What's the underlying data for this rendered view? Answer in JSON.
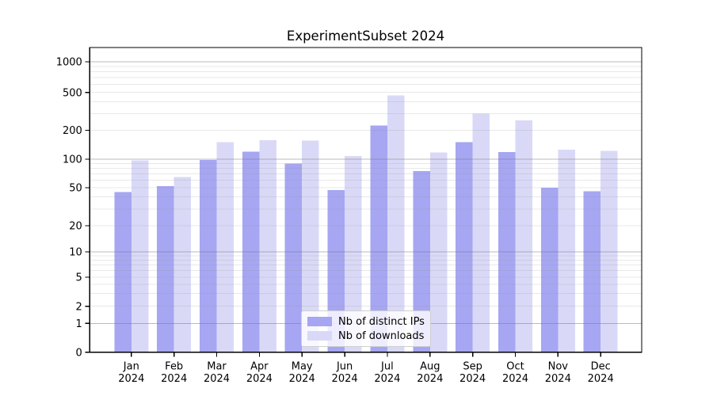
{
  "chart_data": {
    "type": "bar",
    "title": "ExperimentSubset 2024",
    "yscale": "symlog",
    "ylim": [
      0,
      1400
    ],
    "grid": true,
    "legend_position": "lower center",
    "yticks": [
      0,
      1,
      2,
      5,
      10,
      20,
      50,
      100,
      200,
      500,
      1000
    ],
    "categories": [
      "Jan",
      "Feb",
      "Mar",
      "Apr",
      "May",
      "Jun",
      "Jul",
      "Aug",
      "Sep",
      "Oct",
      "Nov",
      "Dec"
    ],
    "category_year": "2024",
    "series": [
      {
        "name": "Nb of distinct IPs",
        "color": "#a6a6f2",
        "values": [
          45,
          52,
          98,
          120,
          90,
          47,
          225,
          75,
          150,
          119,
          50,
          46
        ]
      },
      {
        "name": "Nb of downloads",
        "color": "#d9d9f7",
        "values": [
          97,
          65,
          150,
          158,
          156,
          108,
          465,
          118,
          298,
          255,
          125,
          122
        ]
      }
    ]
  },
  "colors": {
    "spine": "#000000",
    "grid_major": "#787878",
    "grid_minor": "#969696",
    "background": "#ffffff"
  }
}
